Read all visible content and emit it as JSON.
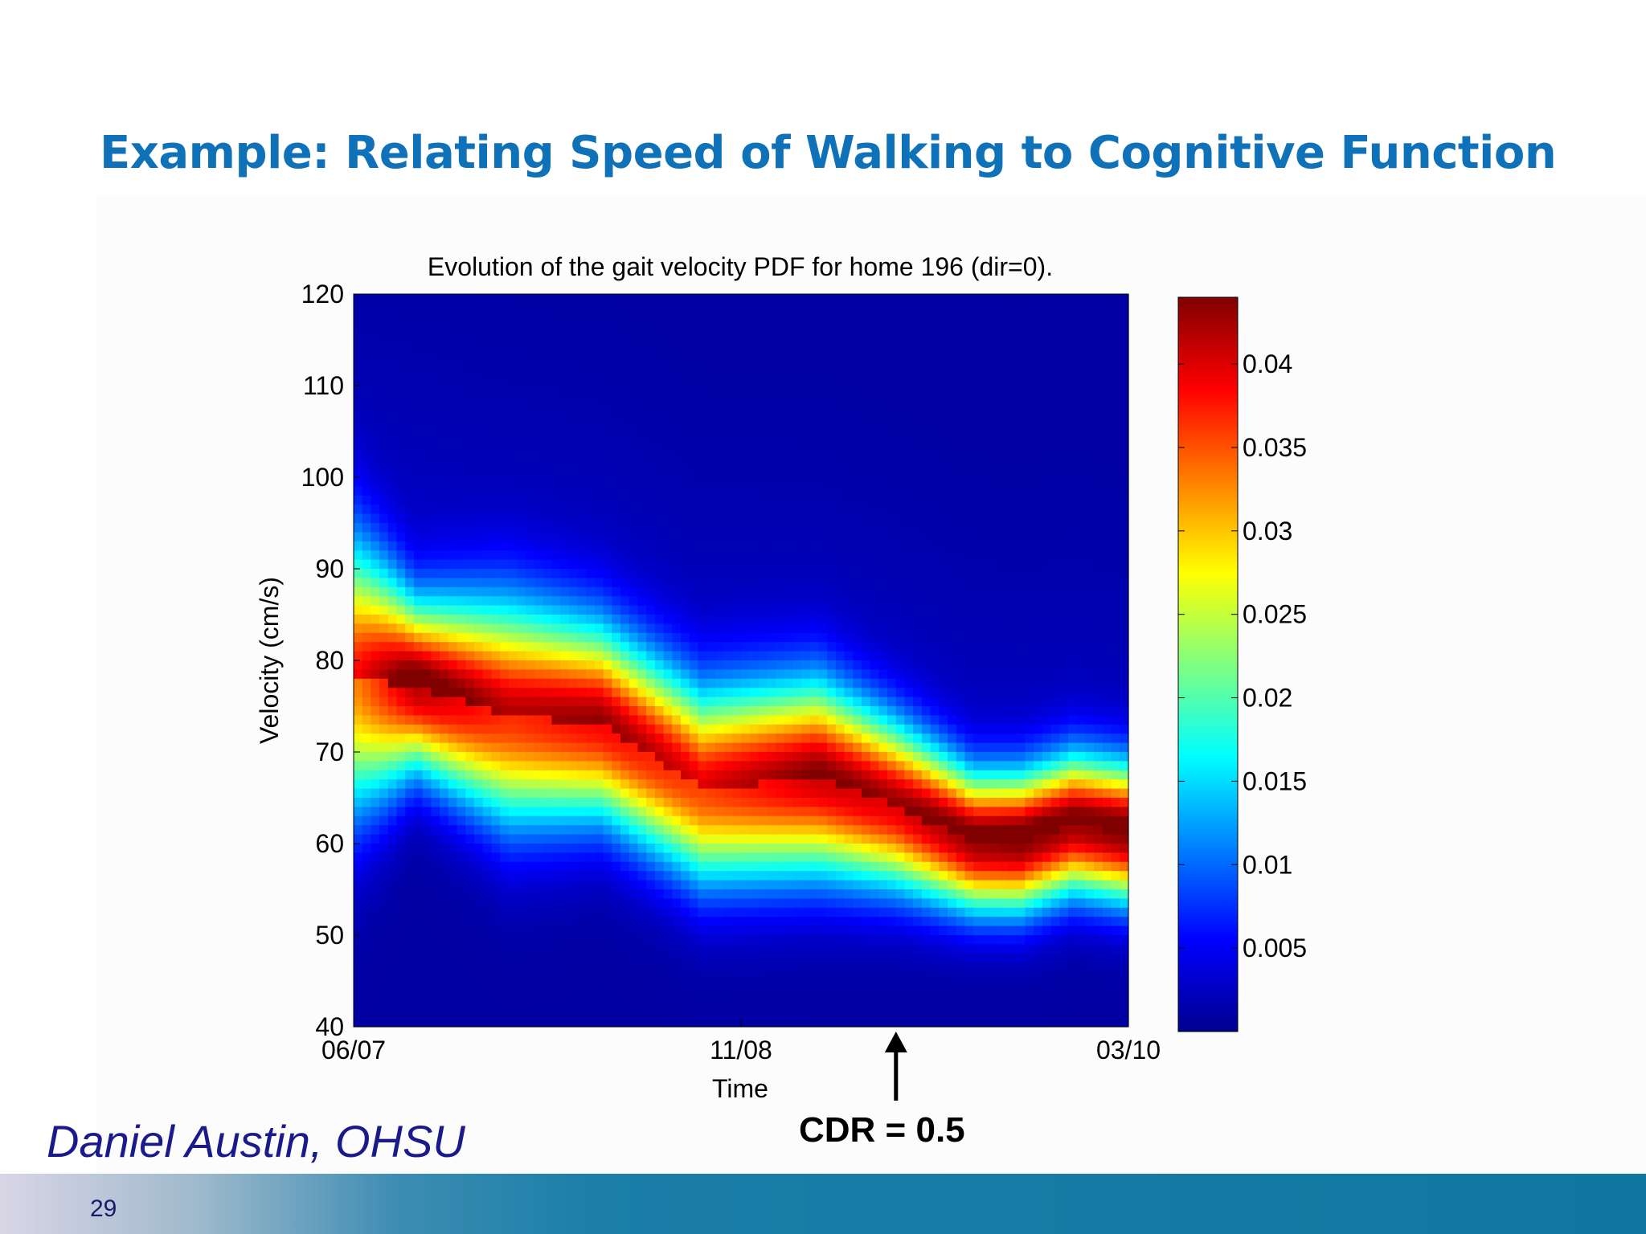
{
  "slide": {
    "title": "Example: Relating Speed of Walking to Cognitive Function",
    "author": "Daniel Austin, OHSU",
    "page_number": "29",
    "annotation": "CDR = 0.5"
  },
  "colors": {
    "title": "#0f72b8",
    "author": "#1a1a8a",
    "footer_bar": "#0f77a0"
  },
  "chart_data": {
    "type": "heatmap",
    "title": "Evolution of the gait velocity PDF for home 196 (dir=0).",
    "xlabel": "Time",
    "ylabel": "Velocity (cm/s)",
    "x_tick_labels": [
      "06/07",
      "11/08",
      "03/10"
    ],
    "x_ticks_fraction": [
      0,
      0.5,
      1
    ],
    "ylim": [
      40,
      120
    ],
    "y_ticks": [
      40,
      50,
      60,
      70,
      80,
      90,
      100,
      110,
      120
    ],
    "colorbar": {
      "colormap": "jet",
      "range": [
        0,
        0.044
      ],
      "ticks": [
        0.005,
        0.01,
        0.015,
        0.02,
        0.025,
        0.03,
        0.035,
        0.04
      ],
      "tick_labels": [
        "0.005",
        "0.01",
        "0.015",
        "0.02",
        "0.025",
        "0.03",
        "0.035",
        "0.04"
      ]
    },
    "ridge": {
      "description": "peak gait velocity over time",
      "time_fraction": [
        0.0,
        0.08,
        0.2,
        0.32,
        0.45,
        0.6,
        0.7,
        0.8,
        0.86,
        0.93,
        1.0
      ],
      "peak_velocity": [
        78,
        77,
        74,
        73,
        66,
        67,
        64,
        60,
        60,
        62,
        61
      ],
      "peak_density": [
        0.031,
        0.04,
        0.035,
        0.037,
        0.034,
        0.039,
        0.038,
        0.041,
        0.042,
        0.041,
        0.042
      ],
      "width_cm_s": [
        10,
        6,
        8,
        7,
        7,
        7,
        6,
        5,
        5,
        5,
        5
      ]
    },
    "annotation_arrow_time_fraction": 0.7
  }
}
